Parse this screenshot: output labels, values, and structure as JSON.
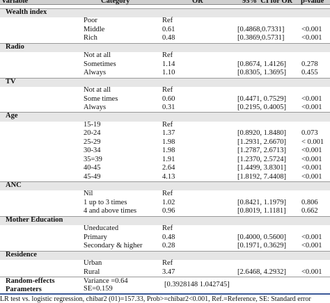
{
  "header": {
    "columns": [
      "Variable",
      "Category",
      "OR",
      "95%  CI for OR",
      "p-value"
    ]
  },
  "sections": [
    {
      "title": "Wealth index",
      "rows": [
        {
          "category": "Poor",
          "or": "Ref"
        },
        {
          "category": "Middle",
          "or": "0.61",
          "ci": "[0.4868,0.7331]",
          "p": "<0.001"
        },
        {
          "category": "Rich",
          "or": "0.48",
          "ci": "[0.3869,0.5731]",
          "p": "<0.001"
        }
      ]
    },
    {
      "title": "Radio",
      "rows": [
        {
          "category": "Not at all",
          "or": "Ref"
        },
        {
          "category": "Sometimes",
          "or": "1.14",
          "ci": "[0.8674, 1.4126]",
          "p": "0.278"
        },
        {
          "category": "Always",
          "or": "1.10",
          "ci": "[0.8305, 1.3695]",
          "p": "0.455"
        }
      ]
    },
    {
      "title": "TV",
      "rows": [
        {
          "category": "Not at all",
          "or": "Ref"
        },
        {
          "category": "Some times",
          "or": "0.60",
          "ci": "[0.4471, 0.7529]",
          "p": "<0.001"
        },
        {
          "category": "Always",
          "or": "0.31",
          "ci": "[0.2195, 0.4005]",
          "p": "<0.001"
        }
      ]
    },
    {
      "title": "Age",
      "rows": [
        {
          "category": "15-19",
          "or": "Ref"
        },
        {
          "category": "20-24",
          "or": "1.37",
          "ci": "[0.8920, 1.8480]",
          "p": "0.073"
        },
        {
          "category": "25-29",
          "or": "1.98",
          "ci": "[1.2931, 2.6670]",
          "p": "< 0.001"
        },
        {
          "category": "30-34",
          "or": "1.98",
          "ci": "[1.2787, 2.6713]",
          "p": "<0.001"
        },
        {
          "category": "35=39",
          "or": "1.91",
          "ci": "[1.2370, 2.5724]",
          "p": "<0.001"
        },
        {
          "category": "40-45",
          "or": "2.64",
          "ci": "[1.4499, 3.8301]",
          "p": "<0.001"
        },
        {
          "category": "45-49",
          "or": "4.13",
          "ci": "[1.8192, 7.4408]",
          "p": "<0.001"
        }
      ]
    },
    {
      "title": "ANC",
      "rows": [
        {
          "category": "Nil",
          "or": "Ref"
        },
        {
          "category": "1 up to 3 times",
          "or": "1.02",
          "ci": "[0.8421, 1.1979]",
          "p": "0.806"
        },
        {
          "category": "4 and above times",
          "or": "0.96",
          "ci": "[0.8019, 1.1181]",
          "p": "0.662"
        }
      ]
    },
    {
      "title": "Mother Education",
      "rows": [
        {
          "category": "Uneducated",
          "or": "Ref"
        },
        {
          "category": "Primary",
          "or": "0.48",
          "ci": "[0.4000, 0.5600]",
          "p": "<0.001"
        },
        {
          "category": "Secondary & higher",
          "or": "0.28",
          "ci": "[0.1971, 0.3629]",
          "p": "<0.001"
        }
      ]
    },
    {
      "title": "Residence",
      "rows": [
        {
          "category": "Urban",
          "or": "Ref"
        },
        {
          "category": "Rural",
          "or": "3.47",
          "ci": "[2.6468, 4.2932]",
          "p": "<0.001"
        }
      ]
    }
  ],
  "random_effects": {
    "label": "Random-effects Parameters",
    "values": [
      "Variance =0.64",
      "SE=0.159"
    ],
    "ci": "[0.3928148 1.042745]"
  },
  "footnote": "LR test vs. logistic regression, chibar2 (01)=157.33, Prob>=chibar2<0.001, Ref.=Reference, SE: Standard error"
}
